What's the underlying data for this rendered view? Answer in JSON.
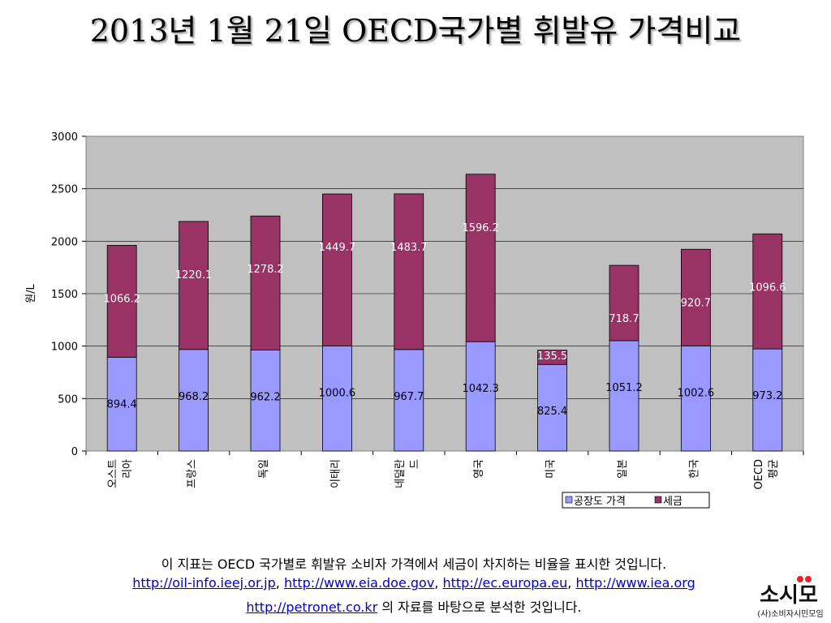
{
  "title": "2013년 1월 21일 OECD국가별 휘발유 가격비교",
  "chart_data": {
    "type": "bar",
    "stacked": true,
    "ylabel": "원/L",
    "ylim": [
      0,
      3000
    ],
    "yticks": [
      0,
      500,
      1000,
      1500,
      2000,
      2500,
      3000
    ],
    "grid": true,
    "legend_position": "bottom-right",
    "categories": [
      "오스트\n리아",
      "프랑스",
      "독일",
      "이태리",
      "네덜란\n드",
      "영국",
      "미국",
      "일본",
      "한국",
      "OECD\n평균"
    ],
    "series": [
      {
        "name": "공장도 가격",
        "color": "#9999ff",
        "values": [
          894.4,
          968.2,
          962.2,
          1000.6,
          967.7,
          1042.3,
          825.4,
          1051.2,
          1002.6,
          973.2
        ]
      },
      {
        "name": "세금",
        "color": "#993366",
        "values": [
          1066.2,
          1220.1,
          1278.2,
          1449.7,
          1483.7,
          1596.2,
          135.5,
          718.7,
          920.7,
          1096.6
        ]
      }
    ]
  },
  "footer": {
    "line1": "이 지표는 OECD 국가별로 휘발유 소비자 가격에서 세금이 차지하는 비율을 표시한 것입니다.",
    "links1": [
      "http://oil-info.ieej.or.jp",
      "http://www.eia.doe.gov",
      "http://ec.europa.eu",
      "http://www.iea.org"
    ],
    "sep": ", ",
    "link2": "http://petronet.co.kr",
    "line3_suffix": " 의 자료를 바탕으로 분석한 것입니다."
  },
  "logo": {
    "text": "소시모",
    "subtext": "(사)소비자시민모임"
  }
}
